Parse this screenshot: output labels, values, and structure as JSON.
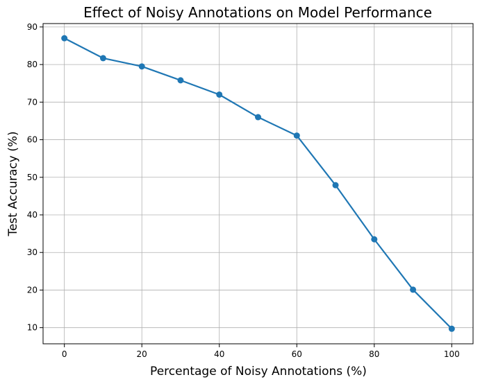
{
  "chart_data": {
    "type": "line",
    "title": "Effect of Noisy Annotations on Model Performance",
    "xlabel": "Percentage of Noisy Annotations (%)",
    "ylabel": "Test Accuracy (%)",
    "x": [
      0,
      10,
      20,
      30,
      40,
      50,
      60,
      70,
      80,
      90,
      100
    ],
    "series": [
      {
        "values": [
          87.0,
          81.7,
          79.5,
          75.8,
          72.0,
          66.0,
          61.1,
          47.9,
          33.5,
          20.1,
          9.7
        ],
        "color": "#1f77b4",
        "marker": "circle"
      }
    ],
    "xlim": [
      -5.5,
      105.5
    ],
    "ylim": [
      5.7,
      90.9
    ],
    "xticks": [
      0,
      20,
      40,
      60,
      80,
      100
    ],
    "yticks": [
      10,
      20,
      30,
      40,
      50,
      60,
      70,
      80,
      90
    ],
    "grid": true,
    "grid_color": "#b0b0b0",
    "axis_color": "#000000"
  }
}
